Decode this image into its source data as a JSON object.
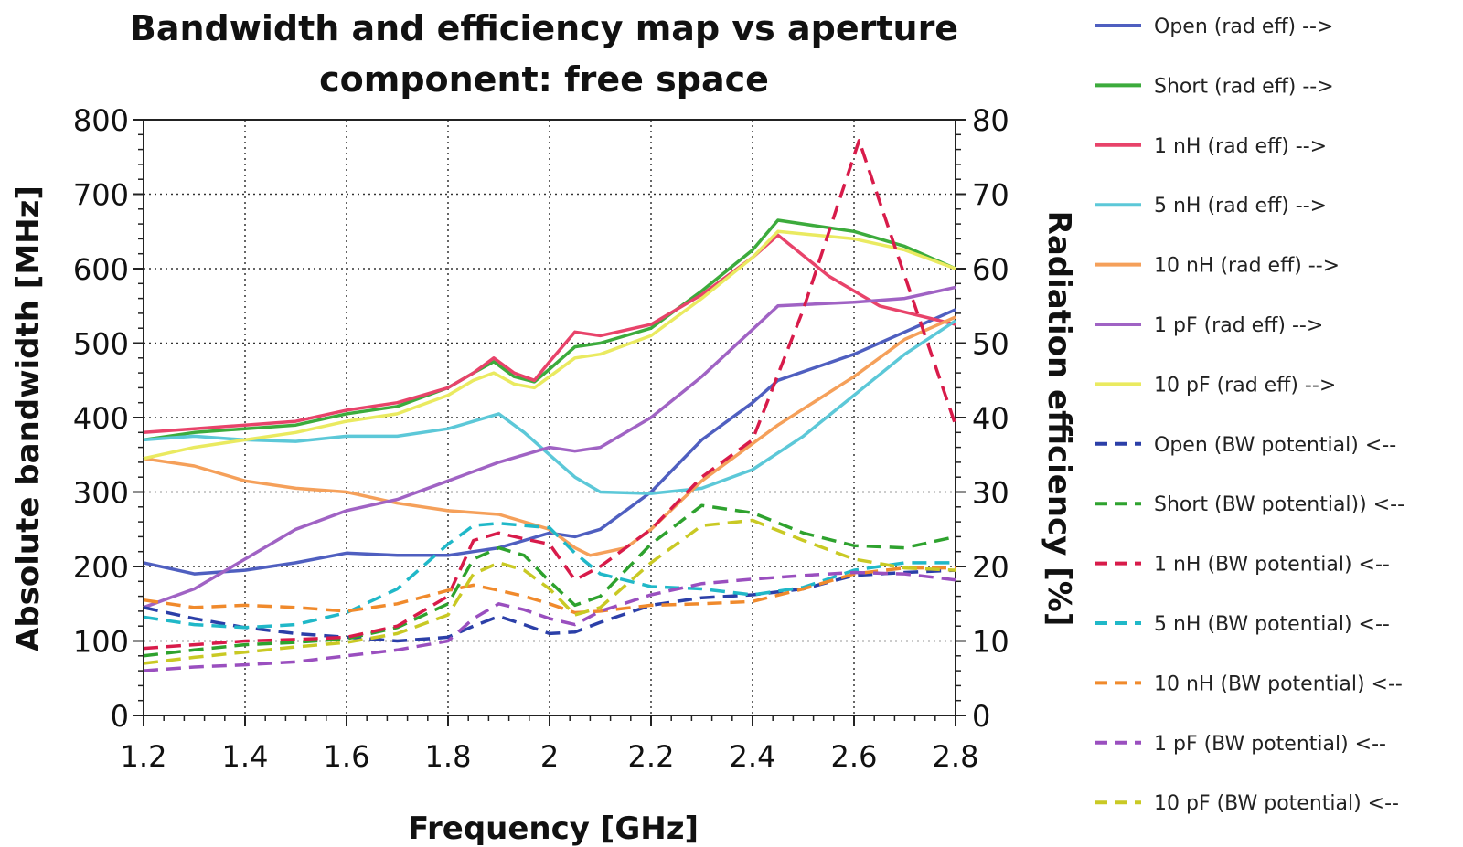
{
  "chart_data": {
    "type": "line",
    "title": [
      "Bandwidth and efficiency map vs aperture",
      "component: free space"
    ],
    "xlabel": "Frequency [GHz]",
    "ylabel_left": "Absolute bandwidth [MHz]",
    "ylabel_right": "Radiation efficiency [%]",
    "xlim": [
      1.2,
      2.8
    ],
    "ylim_left": [
      0,
      800
    ],
    "ylim_right": [
      0,
      80
    ],
    "x_ticks": [
      "1.2",
      "1.4",
      "1.6",
      "1.8",
      "2",
      "2.2",
      "2.4",
      "2.6",
      "2.8"
    ],
    "y_left_ticks": [
      "0",
      "100",
      "200",
      "300",
      "400",
      "500",
      "600",
      "700",
      "800"
    ],
    "y_right_ticks": [
      "0",
      "10",
      "20",
      "30",
      "40",
      "50",
      "60",
      "70",
      "80"
    ],
    "grid": true,
    "legend_position": "right",
    "series": [
      {
        "name": "Open (rad eff) -->",
        "axis": "right",
        "style": "solid",
        "color": "#4f5fc0",
        "x": [
          1.2,
          1.3,
          1.4,
          1.5,
          1.6,
          1.7,
          1.8,
          1.85,
          1.9,
          1.95,
          2.0,
          2.05,
          2.1,
          2.2,
          2.3,
          2.4,
          2.45,
          2.6,
          2.7,
          2.8
        ],
        "y": [
          20.5,
          19.0,
          19.5,
          20.5,
          21.8,
          21.5,
          21.5,
          22.0,
          22.5,
          23.5,
          24.5,
          24.0,
          25.0,
          30.0,
          37.0,
          42.0,
          45.0,
          48.5,
          51.5,
          54.5
        ]
      },
      {
        "name": "Short (rad eff) -->",
        "axis": "right",
        "style": "solid",
        "color": "#3cab3c",
        "x": [
          1.2,
          1.3,
          1.4,
          1.5,
          1.6,
          1.7,
          1.8,
          1.85,
          1.89,
          1.93,
          1.97,
          2.0,
          2.05,
          2.1,
          2.2,
          2.3,
          2.4,
          2.45,
          2.6,
          2.7,
          2.8
        ],
        "y": [
          37.0,
          38.0,
          38.5,
          39.0,
          40.5,
          41.5,
          44.0,
          46.0,
          47.5,
          45.5,
          44.8,
          46.5,
          49.5,
          50.0,
          52.0,
          57.0,
          62.5,
          66.5,
          65.0,
          63.0,
          60.0
        ]
      },
      {
        "name": "1 nH (rad eff) -->",
        "axis": "right",
        "style": "solid",
        "color": "#e8436a",
        "x": [
          1.2,
          1.3,
          1.4,
          1.5,
          1.6,
          1.7,
          1.8,
          1.85,
          1.89,
          1.93,
          1.97,
          2.0,
          2.05,
          2.1,
          2.2,
          2.3,
          2.4,
          2.45,
          2.55,
          2.65,
          2.8
        ],
        "y": [
          38.0,
          38.5,
          39.0,
          39.5,
          41.0,
          42.0,
          44.0,
          46.0,
          48.0,
          46.0,
          45.0,
          47.5,
          51.5,
          51.0,
          52.5,
          56.5,
          61.5,
          64.5,
          59.0,
          55.0,
          52.5
        ]
      },
      {
        "name": "5 nH (rad eff) -->",
        "axis": "right",
        "style": "solid",
        "color": "#5cc8d8",
        "x": [
          1.2,
          1.3,
          1.4,
          1.5,
          1.6,
          1.7,
          1.8,
          1.85,
          1.9,
          1.95,
          2.0,
          2.05,
          2.1,
          2.2,
          2.3,
          2.4,
          2.5,
          2.6,
          2.7,
          2.8
        ],
        "y": [
          37.0,
          37.5,
          37.0,
          36.8,
          37.5,
          37.5,
          38.5,
          39.5,
          40.5,
          38.0,
          35.0,
          32.0,
          30.0,
          29.8,
          30.5,
          33.0,
          37.5,
          43.0,
          48.5,
          53.0
        ]
      },
      {
        "name": "10 nH (rad eff) -->",
        "axis": "right",
        "style": "solid",
        "color": "#f5a05a",
        "x": [
          1.2,
          1.3,
          1.4,
          1.5,
          1.6,
          1.7,
          1.8,
          1.9,
          2.0,
          2.05,
          2.08,
          2.15,
          2.2,
          2.3,
          2.45,
          2.6,
          2.7,
          2.8
        ],
        "y": [
          34.5,
          33.5,
          31.5,
          30.5,
          30.0,
          28.5,
          27.5,
          27.0,
          25.0,
          22.5,
          21.5,
          22.5,
          25.0,
          31.5,
          39.0,
          45.5,
          50.5,
          53.5
        ]
      },
      {
        "name": "1 pF (rad eff) -->",
        "axis": "right",
        "style": "solid",
        "color": "#a063c4",
        "x": [
          1.2,
          1.3,
          1.4,
          1.5,
          1.6,
          1.7,
          1.8,
          1.9,
          2.0,
          2.05,
          2.1,
          2.2,
          2.3,
          2.45,
          2.6,
          2.7,
          2.8
        ],
        "y": [
          14.5,
          17.0,
          21.0,
          25.0,
          27.5,
          29.0,
          31.5,
          34.0,
          36.0,
          35.5,
          36.0,
          40.0,
          45.5,
          55.0,
          55.5,
          56.0,
          57.5
        ]
      },
      {
        "name": "10 pF (rad eff) -->",
        "axis": "right",
        "style": "solid",
        "color": "#eaea60",
        "x": [
          1.2,
          1.3,
          1.4,
          1.5,
          1.6,
          1.7,
          1.8,
          1.85,
          1.89,
          1.93,
          1.97,
          2.0,
          2.05,
          2.1,
          2.2,
          2.3,
          2.4,
          2.45,
          2.6,
          2.7,
          2.8
        ],
        "y": [
          34.5,
          36.0,
          37.0,
          38.0,
          39.5,
          40.5,
          43.0,
          45.0,
          46.0,
          44.5,
          44.0,
          45.5,
          48.0,
          48.5,
          51.0,
          56.0,
          61.5,
          65.0,
          64.0,
          62.5,
          60.0
        ]
      },
      {
        "name": "Open (BW potential) <--",
        "axis": "left",
        "style": "dashed",
        "color": "#2b3fa8",
        "x": [
          1.2,
          1.3,
          1.4,
          1.5,
          1.6,
          1.7,
          1.8,
          1.85,
          1.9,
          1.95,
          2.0,
          2.05,
          2.1,
          2.2,
          2.3,
          2.4,
          2.5,
          2.6,
          2.7,
          2.8
        ],
        "y": [
          145,
          130,
          118,
          110,
          105,
          100,
          105,
          120,
          133,
          122,
          110,
          112,
          125,
          148,
          158,
          162,
          170,
          188,
          192,
          195
        ]
      },
      {
        "name": "Short (BW potential)) <--",
        "axis": "left",
        "style": "dashed",
        "color": "#2ea22e",
        "x": [
          1.2,
          1.3,
          1.4,
          1.5,
          1.6,
          1.7,
          1.8,
          1.85,
          1.9,
          1.95,
          2.0,
          2.05,
          2.1,
          2.2,
          2.3,
          2.4,
          2.5,
          2.6,
          2.7,
          2.8
        ],
        "y": [
          80,
          88,
          95,
          98,
          103,
          118,
          150,
          210,
          225,
          215,
          180,
          148,
          160,
          230,
          282,
          272,
          245,
          228,
          225,
          240
        ]
      },
      {
        "name": "1 nH (BW potential) <--",
        "axis": "left",
        "style": "dashed",
        "color": "#d81b4a",
        "x": [
          1.2,
          1.3,
          1.4,
          1.5,
          1.6,
          1.7,
          1.8,
          1.85,
          1.9,
          1.95,
          2.0,
          2.05,
          2.1,
          2.2,
          2.3,
          2.4,
          2.5,
          2.61,
          2.7,
          2.8
        ],
        "y": [
          90,
          95,
          100,
          102,
          105,
          120,
          160,
          235,
          245,
          237,
          230,
          182,
          200,
          250,
          320,
          370,
          545,
          772,
          590,
          390
        ]
      },
      {
        "name": "5 nH (BW potential) <--",
        "axis": "left",
        "style": "dashed",
        "color": "#20b8c8",
        "x": [
          1.2,
          1.3,
          1.4,
          1.5,
          1.6,
          1.7,
          1.8,
          1.85,
          1.9,
          1.95,
          2.0,
          2.05,
          2.1,
          2.2,
          2.3,
          2.4,
          2.5,
          2.6,
          2.7,
          2.8
        ],
        "y": [
          132,
          122,
          118,
          122,
          138,
          170,
          230,
          255,
          258,
          255,
          252,
          218,
          190,
          173,
          170,
          162,
          172,
          195,
          205,
          205
        ]
      },
      {
        "name": "10 nH (BW potential) <--",
        "axis": "left",
        "style": "dashed",
        "color": "#f08a2c",
        "x": [
          1.2,
          1.3,
          1.4,
          1.5,
          1.6,
          1.7,
          1.8,
          1.85,
          1.9,
          1.95,
          2.0,
          2.05,
          2.1,
          2.2,
          2.3,
          2.4,
          2.5,
          2.6,
          2.7,
          2.8
        ],
        "y": [
          155,
          145,
          148,
          145,
          140,
          150,
          168,
          175,
          168,
          160,
          150,
          138,
          140,
          148,
          150,
          153,
          170,
          190,
          198,
          198
        ]
      },
      {
        "name": "1 pF (BW potential) <--",
        "axis": "left",
        "style": "dashed",
        "color": "#9a4fbf",
        "x": [
          1.2,
          1.3,
          1.4,
          1.5,
          1.6,
          1.7,
          1.8,
          1.85,
          1.9,
          1.95,
          2.0,
          2.05,
          2.1,
          2.2,
          2.3,
          2.4,
          2.5,
          2.6,
          2.7,
          2.8
        ],
        "y": [
          60,
          65,
          68,
          72,
          80,
          88,
          100,
          130,
          150,
          142,
          130,
          122,
          140,
          162,
          177,
          183,
          188,
          192,
          190,
          182
        ]
      },
      {
        "name": "10 pF (BW potential) <--",
        "axis": "left",
        "style": "dashed",
        "color": "#c9c924",
        "x": [
          1.2,
          1.3,
          1.4,
          1.5,
          1.6,
          1.7,
          1.8,
          1.85,
          1.9,
          1.95,
          2.0,
          2.05,
          2.1,
          2.2,
          2.3,
          2.4,
          2.5,
          2.6,
          2.7,
          2.8
        ],
        "y": [
          70,
          78,
          85,
          92,
          98,
          110,
          135,
          190,
          205,
          195,
          170,
          135,
          145,
          205,
          255,
          262,
          235,
          210,
          198,
          195
        ]
      }
    ]
  }
}
